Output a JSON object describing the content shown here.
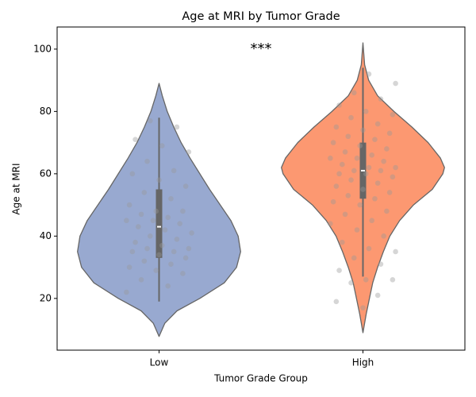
{
  "chart_data": {
    "type": "violin",
    "title": "Age at MRI by Tumor Grade",
    "x_label": "Tumor Grade Group",
    "y_label": "Age at MRI",
    "categories": [
      "Low",
      "High"
    ],
    "annotation": {
      "text": "***",
      "x": 0.5,
      "y": 100
    },
    "ylim": [
      3.4,
      107.1
    ],
    "yticks": [
      20,
      40,
      60,
      80,
      100
    ],
    "grid": false,
    "series": [
      {
        "name": "Low",
        "color": "#8da0cb",
        "density_y": [
          7.8,
          12,
          16,
          20,
          25,
          30,
          35,
          40,
          45,
          50,
          55,
          60,
          65,
          70,
          75,
          80,
          85,
          89
        ],
        "density": [
          0,
          0.07,
          0.22,
          0.5,
          0.8,
          0.95,
          1.0,
          0.97,
          0.88,
          0.75,
          0.62,
          0.5,
          0.38,
          0.27,
          0.18,
          0.1,
          0.04,
          0
        ],
        "whisker_low": 19,
        "q1": 33,
        "median": 43,
        "q3": 55,
        "whisker_high": 78,
        "points": [
          22,
          24,
          26,
          28,
          29,
          30,
          31,
          32,
          33,
          34,
          35,
          35,
          36,
          36,
          37,
          38,
          39,
          40,
          41,
          42,
          43,
          44,
          45,
          45,
          46,
          47,
          48,
          48,
          50,
          52,
          54,
          56,
          58,
          60,
          61,
          64,
          67,
          69,
          71,
          75,
          77
        ]
      },
      {
        "name": "High",
        "color": "#fc8d62",
        "density_y": [
          9,
          15,
          20,
          25,
          30,
          35,
          40,
          45,
          50,
          55,
          60,
          62,
          65,
          70,
          75,
          80,
          85,
          90,
          95,
          102
        ],
        "density": [
          0,
          0.04,
          0.08,
          0.12,
          0.18,
          0.25,
          0.33,
          0.45,
          0.62,
          0.85,
          0.98,
          1.0,
          0.95,
          0.8,
          0.6,
          0.38,
          0.18,
          0.07,
          0.02,
          0
        ],
        "whisker_low": 27,
        "q1": 52,
        "median": 61,
        "q3": 70,
        "whisker_high": 94,
        "points": [
          17,
          19,
          21,
          25,
          26,
          26,
          29,
          31,
          33,
          35,
          36,
          38,
          40,
          42,
          44,
          45,
          47,
          48,
          50,
          51,
          52,
          53,
          54,
          55,
          56,
          57,
          58,
          59,
          60,
          60,
          61,
          61,
          62,
          62,
          63,
          64,
          65,
          65,
          66,
          67,
          68,
          69,
          70,
          71,
          72,
          73,
          74,
          75,
          76,
          78,
          79,
          80,
          82,
          84,
          86,
          89,
          92
        ]
      }
    ]
  }
}
